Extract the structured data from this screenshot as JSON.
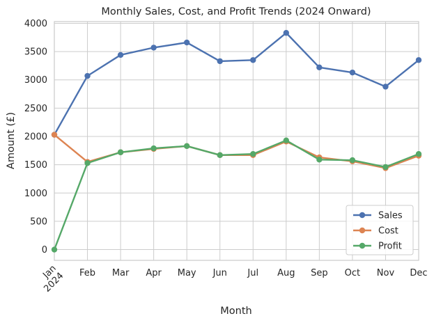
{
  "chart_data": {
    "type": "line",
    "title": "Monthly Sales, Cost, and Profit Trends (2024 Onward)",
    "xlabel": "Month",
    "ylabel": "Amount (£)",
    "categories": [
      "Jan\n2024",
      "Feb",
      "Mar",
      "Apr",
      "May",
      "Jun",
      "Jul",
      "Aug",
      "Sep",
      "Oct",
      "Nov",
      "Dec"
    ],
    "yticks": [
      0,
      500,
      1000,
      1500,
      2000,
      2500,
      3000,
      3500,
      4000
    ],
    "ylim": [
      -190,
      4030
    ],
    "grid": true,
    "legend_position": "lower-right",
    "series": [
      {
        "name": "Sales",
        "color": "#4c72b0",
        "values": [
          2030,
          3070,
          3440,
          3570,
          3660,
          3330,
          3350,
          3830,
          3220,
          3130,
          2880,
          3350
        ]
      },
      {
        "name": "Cost",
        "color": "#dd8452",
        "values": [
          2030,
          1550,
          1720,
          1780,
          1830,
          1670,
          1670,
          1910,
          1630,
          1560,
          1440,
          1660
        ]
      },
      {
        "name": "Profit",
        "color": "#55a868",
        "values": [
          0,
          1530,
          1720,
          1790,
          1830,
          1670,
          1690,
          1930,
          1590,
          1580,
          1460,
          1690
        ]
      }
    ]
  }
}
